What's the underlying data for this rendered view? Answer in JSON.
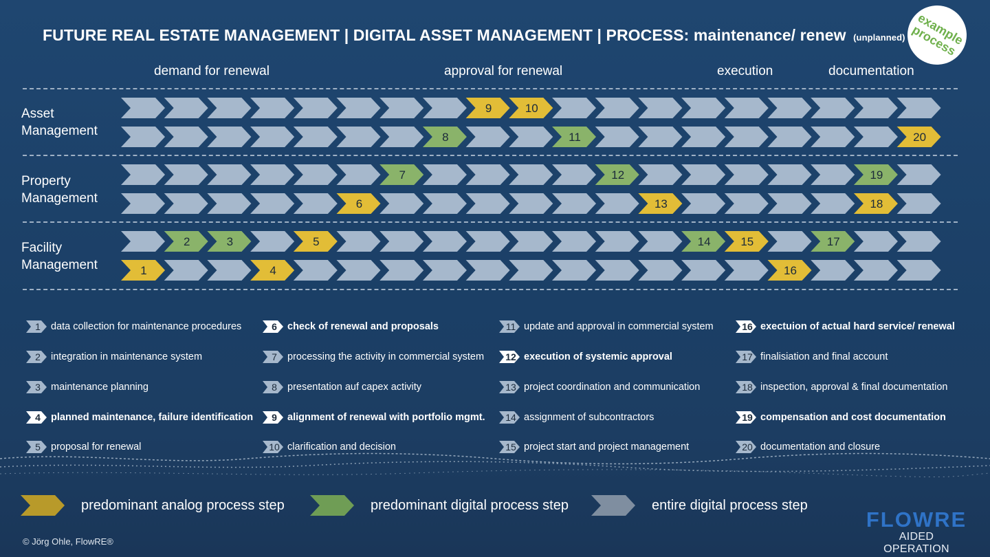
{
  "title": {
    "main": "FUTURE REAL ESTATE MANAGEMENT | DIGITAL ASSET MANAGEMENT | PROCESS: maintenance/ renew",
    "small": "(unplanned)"
  },
  "badge": {
    "line1": "example",
    "line2": "process"
  },
  "phases": [
    "demand for renewal",
    "approval for renewal",
    "execution",
    "documentation"
  ],
  "row_labels": [
    {
      "line1": "Asset",
      "line2": "Management"
    },
    {
      "line1": "Property",
      "line2": "Management"
    },
    {
      "line1": "Facility",
      "line2": "Management"
    }
  ],
  "colors": {
    "analog": "#e2bd37",
    "digital": "#8ab36a",
    "entire": "#a6b8cc"
  },
  "steps": [
    {
      "n": "1",
      "lane": 5,
      "col": 0,
      "kind": "analog"
    },
    {
      "n": "2",
      "lane": 4,
      "col": 1,
      "kind": "digital"
    },
    {
      "n": "3",
      "lane": 4,
      "col": 2,
      "kind": "digital"
    },
    {
      "n": "4",
      "lane": 5,
      "col": 3,
      "kind": "analog"
    },
    {
      "n": "5",
      "lane": 4,
      "col": 4,
      "kind": "analog"
    },
    {
      "n": "6",
      "lane": 3,
      "col": 5,
      "kind": "analog"
    },
    {
      "n": "7",
      "lane": 2,
      "col": 6,
      "kind": "digital"
    },
    {
      "n": "8",
      "lane": 1,
      "col": 7,
      "kind": "digital"
    },
    {
      "n": "9",
      "lane": 0,
      "col": 8,
      "kind": "analog"
    },
    {
      "n": "10",
      "lane": 0,
      "col": 9,
      "kind": "analog"
    },
    {
      "n": "11",
      "lane": 1,
      "col": 10,
      "kind": "digital"
    },
    {
      "n": "12",
      "lane": 2,
      "col": 11,
      "kind": "digital"
    },
    {
      "n": "13",
      "lane": 3,
      "col": 12,
      "kind": "analog"
    },
    {
      "n": "14",
      "lane": 4,
      "col": 13,
      "kind": "digital"
    },
    {
      "n": "15",
      "lane": 4,
      "col": 14,
      "kind": "analog"
    },
    {
      "n": "16",
      "lane": 5,
      "col": 15,
      "kind": "analog"
    },
    {
      "n": "17",
      "lane": 4,
      "col": 16,
      "kind": "digital"
    },
    {
      "n": "18",
      "lane": 3,
      "col": 17,
      "kind": "analog"
    },
    {
      "n": "19",
      "lane": 2,
      "col": 17,
      "kind": "digital"
    },
    {
      "n": "20",
      "lane": 1,
      "col": 18,
      "kind": "analog"
    }
  ],
  "legend": [
    {
      "n": "1",
      "text": "data collection for maintenance  procedures",
      "bold": false
    },
    {
      "n": "2",
      "text": "integration in maintenance system",
      "bold": false
    },
    {
      "n": "3",
      "text": "maintenance planning",
      "bold": false
    },
    {
      "n": "4",
      "text": "planned maintenance, failure  identification",
      "bold": true
    },
    {
      "n": "5",
      "text": "proposal for renewal",
      "bold": false
    },
    {
      "n": "6",
      "text": "check of renewal and proposals",
      "bold": true
    },
    {
      "n": "7",
      "text": "processing the activity in commercial system",
      "bold": false
    },
    {
      "n": "8",
      "text": "presentation auf capex activity",
      "bold": false
    },
    {
      "n": "9",
      "text": "alignment of renewal with portfolio mgmt.",
      "bold": true
    },
    {
      "n": "10",
      "text": "clarification and decision",
      "bold": false
    },
    {
      "n": "11",
      "text": "update and approval in commercial system",
      "bold": false
    },
    {
      "n": "12",
      "text": "execution of systemic approval",
      "bold": true
    },
    {
      "n": "13",
      "text": "project coordination and communication",
      "bold": false
    },
    {
      "n": "14",
      "text": "assignment of subcontractors",
      "bold": false
    },
    {
      "n": "15",
      "text": "project start and project management",
      "bold": false
    },
    {
      "n": "16",
      "text": "exectuion of actual hard service/ renewal",
      "bold": true
    },
    {
      "n": "17",
      "text": "finalisiation and final account",
      "bold": false
    },
    {
      "n": "18",
      "text": "inspection, approval & final documentation",
      "bold": false
    },
    {
      "n": "19",
      "text": "compensation and cost documentation",
      "bold": true
    },
    {
      "n": "20",
      "text": "documentation and closure",
      "bold": false
    }
  ],
  "key": [
    {
      "kind": "analog",
      "label": "predominant analog process step",
      "color": "#b89a2a"
    },
    {
      "kind": "digital",
      "label": "predominant digital process step",
      "color": "#6f9d55"
    },
    {
      "kind": "entire",
      "label": "entire digital process step",
      "color": "#7f8ea0"
    }
  ],
  "copyright": "© Jörg Ohle, FlowRE®",
  "logo": {
    "main": "FLOWRE",
    "sub": "AIDED OPERATION"
  }
}
